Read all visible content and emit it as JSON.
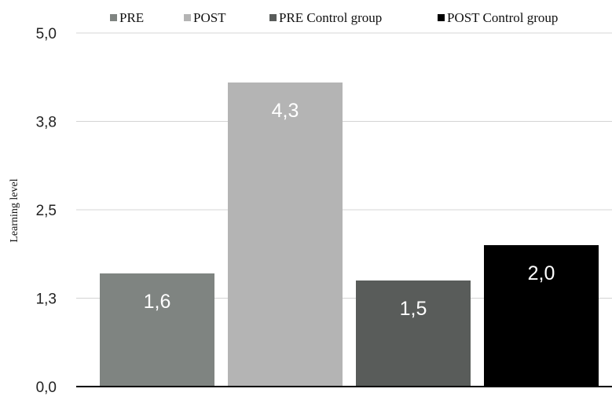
{
  "chart_data": {
    "type": "bar",
    "title": "",
    "xlabel": "",
    "ylabel": "Learning level",
    "ylim": [
      0,
      5
    ],
    "y_ticks": [
      {
        "value": 0,
        "label": "0,0"
      },
      {
        "value": 1.25,
        "label": "1,3"
      },
      {
        "value": 2.5,
        "label": "2,5"
      },
      {
        "value": 3.75,
        "label": "3,8"
      },
      {
        "value": 5,
        "label": "5,0"
      }
    ],
    "grid": true,
    "legend_position": "top",
    "series": [
      {
        "name": "PRE",
        "value": 1.6,
        "label": "1,6",
        "color": "#7f8481"
      },
      {
        "name": "POST",
        "value": 4.3,
        "label": "4,3",
        "color": "#b4b4b4"
      },
      {
        "name": "PRE Control group",
        "value": 1.5,
        "label": "1,5",
        "color": "#595c5a"
      },
      {
        "name": "POST Control group",
        "value": 2.0,
        "label": "2,0",
        "color": "#000000"
      }
    ]
  }
}
